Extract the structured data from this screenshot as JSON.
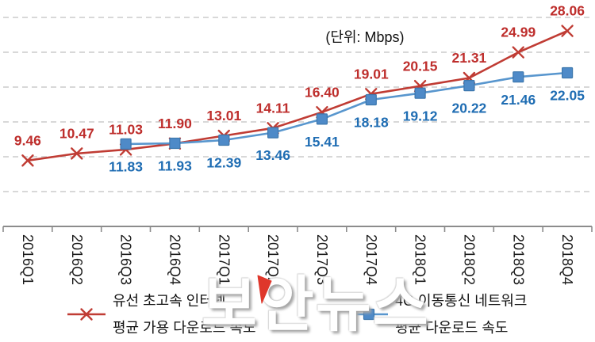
{
  "unit_label": "(단위: Mbps)",
  "watermark": "보안뉴스",
  "colors": {
    "grid": "#cccccc",
    "axis": "#8c8c8c",
    "tick_text": "#1a1a1a",
    "watermark_pin_red": "#df372b"
  },
  "chart_data": {
    "type": "line",
    "title": "",
    "unit": "Mbps",
    "categories": [
      "2016Q1",
      "2016Q2",
      "2016Q3",
      "2016Q4",
      "2017Q1",
      "2017Q2",
      "2017Q3",
      "2017Q4",
      "2018Q1",
      "2018Q2",
      "2018Q3",
      "2018Q4"
    ],
    "series": [
      {
        "id": "wired",
        "name": "유선 초고속 인터넷 평균 가용 다운로드 속도",
        "marker": "x",
        "color": "#c03c34",
        "label_color": "#be2e2c",
        "values": [
          9.46,
          10.47,
          11.03,
          11.9,
          13.01,
          14.11,
          16.4,
          19.01,
          20.15,
          21.31,
          24.99,
          28.06
        ]
      },
      {
        "id": "mobile-4g",
        "name": "4G 이동통신 네트워크 평균 다운로드 속도",
        "marker": "square",
        "color": "#5896ce",
        "marker_fill": "#4e8ac8",
        "marker_border": "#3c77ad",
        "label_color": "#1f6db3",
        "values": [
          null,
          null,
          11.83,
          11.93,
          12.39,
          13.46,
          15.41,
          18.18,
          19.12,
          20.22,
          21.46,
          22.05
        ]
      }
    ],
    "ylim": [
      0,
      30
    ],
    "ygrid": [
      5,
      10,
      15,
      20,
      25,
      30
    ],
    "grid_style": "horizontal dashed",
    "y_axis_labels_visible": false,
    "x_label_rotation_deg": 90,
    "legend_position": "bottom"
  },
  "legend": {
    "items": [
      {
        "line1": "유선 초고속 인터넷",
        "line2": "평균 가용 다운로드 속도"
      },
      {
        "line1": "4G 이동통신 네트워크",
        "line2": "평균 다운로드 속도"
      }
    ]
  }
}
